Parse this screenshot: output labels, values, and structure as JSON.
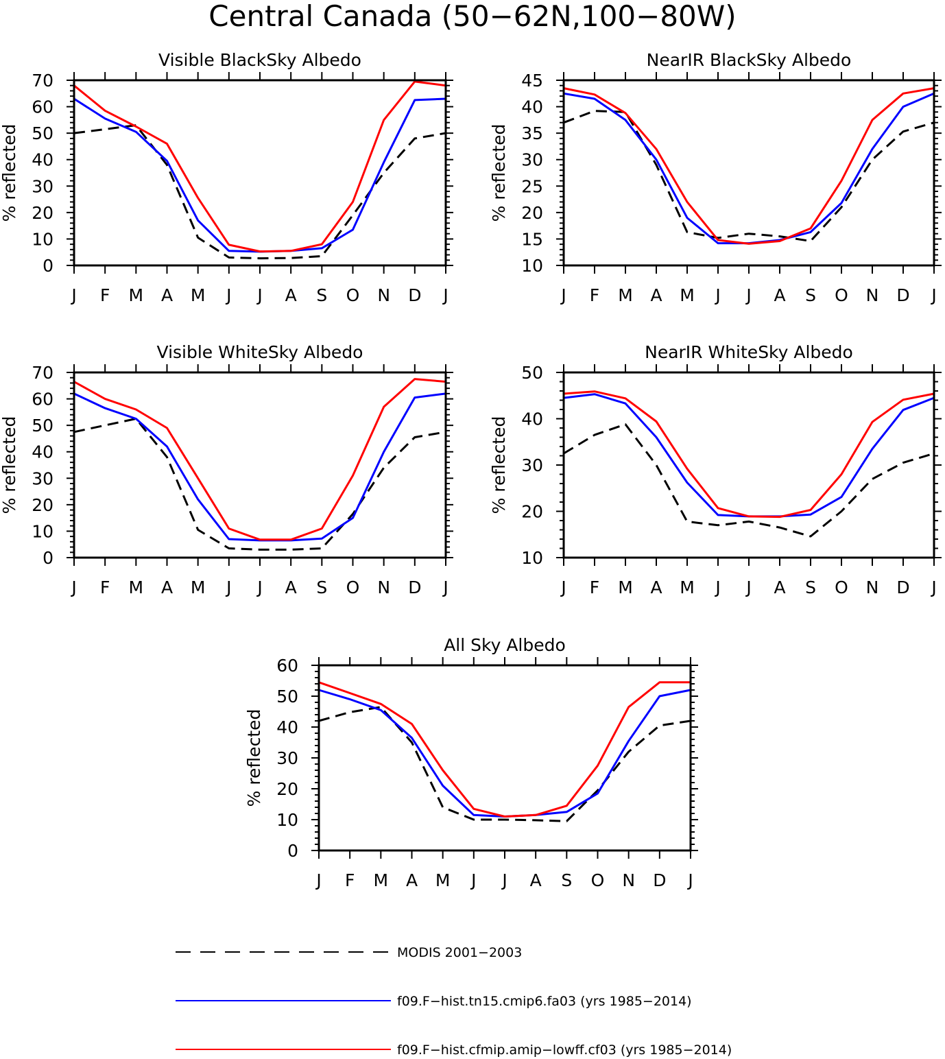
{
  "figure": {
    "title": "Central Canada (50−62N,100−80W)",
    "legend": [
      {
        "label": "MODIS 2001−2003",
        "color": "#000000",
        "style": "dashed"
      },
      {
        "label": "f09.F−hist.tn15.cmip6.fa03 (yrs 1985−2014)",
        "color": "#0000ff",
        "style": "solid"
      },
      {
        "label": "f09.F−hist.cfmip.amip−lowff.cf03 (yrs 1985−2014)",
        "color": "#ff0000",
        "style": "solid"
      }
    ]
  },
  "chart_data": [
    {
      "type": "line",
      "title": "Visible BlackSky Albedo",
      "ylabel": "% reflected",
      "categories": [
        "J",
        "F",
        "M",
        "A",
        "M",
        "J",
        "J",
        "A",
        "S",
        "O",
        "N",
        "D",
        "J"
      ],
      "ylim": [
        0,
        70
      ],
      "yticks": [
        0,
        10,
        20,
        30,
        40,
        50,
        60,
        70
      ],
      "series": [
        {
          "name": "MODIS 2001−2003",
          "color": "#000000",
          "dashed": true,
          "values": [
            50,
            51.5,
            53,
            38,
            10.5,
            3,
            2.7,
            2.8,
            3.5,
            19,
            35,
            48,
            50
          ]
        },
        {
          "name": "f09.F−hist.tn15.cmip6.fa03 (yrs 1985−2014)",
          "color": "#0000ff",
          "dashed": false,
          "values": [
            63,
            55.5,
            50.5,
            39.5,
            17,
            5.5,
            5.2,
            5.5,
            6.5,
            13.5,
            39,
            62.5,
            63
          ]
        },
        {
          "name": "f09.F−hist.cfmip.amip−lowff.cf03 (yrs 1985−2014)",
          "color": "#ff0000",
          "dashed": false,
          "values": [
            68,
            58.5,
            52.5,
            46,
            25.5,
            7.8,
            5.3,
            5.5,
            8,
            24,
            55,
            69.5,
            68
          ]
        }
      ]
    },
    {
      "type": "line",
      "title": "NearIR BlackSky Albedo",
      "ylabel": "% reflected",
      "categories": [
        "J",
        "F",
        "M",
        "A",
        "M",
        "J",
        "J",
        "A",
        "S",
        "O",
        "N",
        "D",
        "J"
      ],
      "ylim": [
        10,
        45
      ],
      "yticks": [
        10,
        15,
        20,
        25,
        30,
        35,
        40,
        45
      ],
      "series": [
        {
          "name": "MODIS 2001−2003",
          "color": "#000000",
          "dashed": true,
          "values": [
            37,
            39.2,
            39,
            29,
            16.3,
            15.2,
            16,
            15.5,
            14.6,
            21,
            30,
            35.3,
            37
          ]
        },
        {
          "name": "f09.F−hist.tn15.cmip6.fa03 (yrs 1985−2014)",
          "color": "#0000ff",
          "dashed": false,
          "values": [
            42.5,
            41.5,
            37.5,
            30,
            19,
            14.2,
            14.2,
            14.8,
            16.3,
            21.8,
            32,
            40,
            42.5
          ]
        },
        {
          "name": "f09.F−hist.cfmip.amip−lowff.cf03 (yrs 1985−2014)",
          "color": "#ff0000",
          "dashed": false,
          "values": [
            43.5,
            42.3,
            38.8,
            32,
            22,
            14.8,
            14.1,
            14.6,
            17,
            26,
            37.5,
            42.5,
            43.5
          ]
        }
      ]
    },
    {
      "type": "line",
      "title": "Visible WhiteSky Albedo",
      "ylabel": "% reflected",
      "categories": [
        "J",
        "F",
        "M",
        "A",
        "M",
        "J",
        "J",
        "A",
        "S",
        "O",
        "N",
        "D",
        "J"
      ],
      "ylim": [
        0,
        70
      ],
      "yticks": [
        0,
        10,
        20,
        30,
        40,
        50,
        60,
        70
      ],
      "series": [
        {
          "name": "MODIS 2001−2003",
          "color": "#000000",
          "dashed": true,
          "values": [
            47.5,
            50,
            52.5,
            38,
            10.5,
            3.5,
            3,
            3,
            3.5,
            16.5,
            34,
            45.5,
            47.5
          ]
        },
        {
          "name": "f09.F−hist.tn15.cmip6.fa03 (yrs 1985−2014)",
          "color": "#0000ff",
          "dashed": false,
          "values": [
            62,
            56.5,
            52.5,
            42,
            22,
            7,
            6.5,
            6.5,
            7.2,
            15,
            40,
            60.5,
            62
          ]
        },
        {
          "name": "f09.F−hist.cfmip.amip−lowff.cf03 (yrs 1985−2014)",
          "color": "#ff0000",
          "dashed": false,
          "values": [
            66.5,
            60,
            56,
            49,
            30,
            11,
            6.8,
            6.8,
            11,
            31,
            57,
            67.5,
            66.5
          ]
        }
      ]
    },
    {
      "type": "line",
      "title": "NearIR WhiteSky Albedo",
      "ylabel": "% reflected",
      "categories": [
        "J",
        "F",
        "M",
        "A",
        "M",
        "J",
        "J",
        "A",
        "S",
        "O",
        "N",
        "D",
        "J"
      ],
      "ylim": [
        10,
        50
      ],
      "yticks": [
        10,
        20,
        30,
        40,
        50
      ],
      "series": [
        {
          "name": "MODIS 2001−2003",
          "color": "#000000",
          "dashed": true,
          "values": [
            32.5,
            36.5,
            38.8,
            30,
            17.8,
            17,
            17.8,
            16.5,
            14.6,
            20,
            27,
            30.5,
            32.5
          ]
        },
        {
          "name": "f09.F−hist.tn15.cmip6.fa03 (yrs 1985−2014)",
          "color": "#0000ff",
          "dashed": false,
          "values": [
            44.5,
            45.3,
            43.3,
            36,
            26.2,
            19.2,
            18.9,
            18.9,
            19.3,
            23.1,
            33.5,
            41.9,
            44.5
          ]
        },
        {
          "name": "f09.F−hist.cfmip.amip−lowff.cf03 (yrs 1985−2014)",
          "color": "#ff0000",
          "dashed": false,
          "values": [
            45.4,
            45.9,
            44.4,
            39.4,
            29.2,
            20.7,
            18.9,
            18.8,
            20.3,
            28,
            39.3,
            44.1,
            45.4
          ]
        }
      ]
    },
    {
      "type": "line",
      "title": "All Sky Albedo",
      "ylabel": "% reflected",
      "categories": [
        "J",
        "F",
        "M",
        "A",
        "M",
        "J",
        "J",
        "A",
        "S",
        "O",
        "N",
        "D",
        "J"
      ],
      "ylim": [
        0,
        60
      ],
      "yticks": [
        0,
        10,
        20,
        30,
        40,
        50,
        60
      ],
      "series": [
        {
          "name": "MODIS 2001−2003",
          "color": "#000000",
          "dashed": true,
          "values": [
            42,
            44.8,
            46.5,
            35,
            14,
            10,
            10,
            9.8,
            9.5,
            19.5,
            32,
            40.5,
            42
          ]
        },
        {
          "name": "f09.F−hist.tn15.cmip6.fa03 (yrs 1985−2014)",
          "color": "#0000ff",
          "dashed": false,
          "values": [
            52,
            49,
            45.5,
            36.5,
            21,
            11.5,
            11,
            11.5,
            12.5,
            18.5,
            35.5,
            50,
            52
          ]
        },
        {
          "name": "f09.F−hist.cfmip.amip−lowff.cf03 (yrs 1985−2014)",
          "color": "#ff0000",
          "dashed": false,
          "values": [
            54.5,
            51,
            47.5,
            41,
            26,
            13.5,
            11,
            11.5,
            14.5,
            27.5,
            46.5,
            54.5,
            54.5
          ]
        }
      ]
    }
  ]
}
